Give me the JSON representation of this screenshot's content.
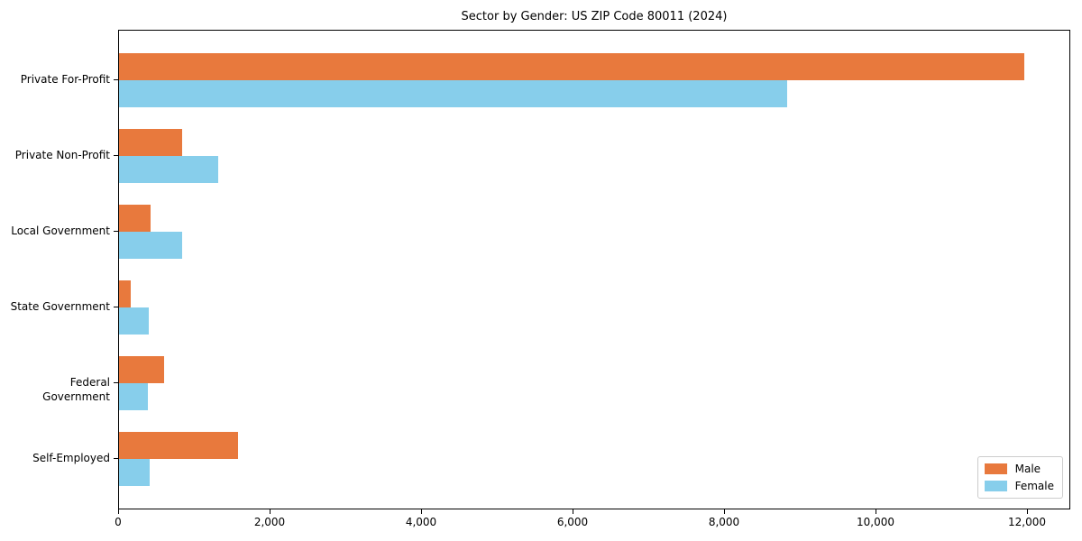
{
  "chart_data": {
    "type": "bar",
    "orientation": "horizontal",
    "title": "Sector by Gender: US ZIP Code 80011 (2024)",
    "categories": [
      "Private For-Profit",
      "Private Non-Profit",
      "Local Government",
      "State Government",
      "Federal Government",
      "Self-Employed"
    ],
    "series": [
      {
        "name": "Male",
        "color": "#E8793D",
        "values": [
          11950,
          830,
          420,
          160,
          600,
          1570
        ]
      },
      {
        "name": "Female",
        "color": "#87CEEB",
        "values": [
          8820,
          1310,
          830,
          395,
          380,
          410
        ]
      }
    ],
    "xlim": [
      0,
      12571
    ],
    "xticks": [
      0,
      2000,
      4000,
      6000,
      8000,
      10000,
      12000
    ],
    "xtick_labels": [
      "0",
      "2,000",
      "4,000",
      "6,000",
      "8,000",
      "10,000",
      "12,000"
    ],
    "xlabel": "",
    "ylabel": "",
    "grid": false,
    "legend_position": "lower right",
    "background_color": "#ffffff",
    "axis_color": "#000000"
  }
}
